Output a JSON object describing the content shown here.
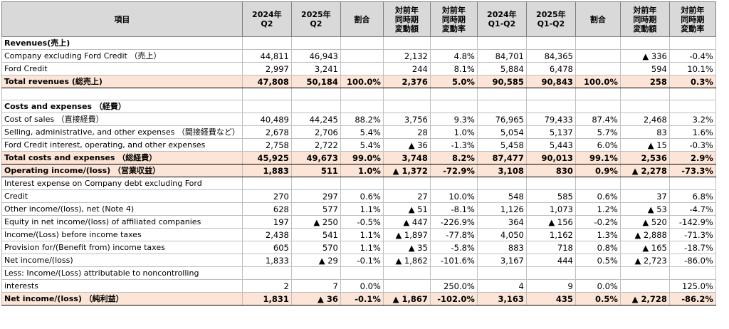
{
  "header": [
    "項目",
    "2024年\nQ2",
    "2025年\nQ2",
    "割合",
    "対前年\n同時期\n変動額",
    "対前年\n同時期\n変動率",
    "2024年\nQ1-Q2",
    "2025年\nQ1-Q2",
    "割合",
    "対前年\n同時期\n変動額",
    "対前年\n同時期\n変動率"
  ],
  "rows": [
    {
      "type": "section",
      "cells": [
        "Revenues(売上)",
        "",
        "",
        "",
        "",
        "",
        "",
        "",
        "",
        "",
        ""
      ]
    },
    {
      "type": "normal",
      "cells": [
        "Company excluding Ford Credit （売上）",
        "44,811",
        "46,943",
        "",
        "2,132",
        "4.8%",
        "84,701",
        "84,365",
        "",
        "▲ 336",
        "-0.4%"
      ]
    },
    {
      "type": "normal",
      "cells": [
        "Ford Credit",
        "2,997",
        "3,241",
        "",
        "244",
        "8.1%",
        "5,884",
        "6,478",
        "",
        "594",
        "10.1%"
      ]
    },
    {
      "type": "total",
      "cells": [
        "Total revenues (総売上)",
        "47,808",
        "50,184",
        "100.0%",
        "2,376",
        "5.0%",
        "90,585",
        "90,843",
        "100.0%",
        "258",
        "0.3%"
      ]
    },
    {
      "type": "blank",
      "cells": [
        "",
        "",
        "",
        "",
        "",
        "",
        "",
        "",
        "",
        "",
        ""
      ]
    },
    {
      "type": "section",
      "cells": [
        "Costs and expenses （経費）",
        "",
        "",
        "",
        "",
        "",
        "",
        "",
        "",
        "",
        ""
      ]
    },
    {
      "type": "normal",
      "cells": [
        "Cost of sales （直接経費）",
        "40,489",
        "44,245",
        "88.2%",
        "3,756",
        "9.3%",
        "76,965",
        "79,433",
        "87.4%",
        "2,468",
        "3.2%"
      ]
    },
    {
      "type": "normal",
      "cells": [
        "Selling, administrative, and other expenses （間接経費など）",
        "2,678",
        "2,706",
        "5.4%",
        "28",
        "1.0%",
        "5,054",
        "5,137",
        "5.7%",
        "83",
        "1.6%"
      ]
    },
    {
      "type": "normal",
      "cells": [
        "Ford Credit interest, operating, and other expenses",
        "2,758",
        "2,722",
        "5.4%",
        "▲ 36",
        "-1.3%",
        "5,458",
        "5,443",
        "6.0%",
        "▲ 15",
        "-0.3%"
      ]
    },
    {
      "type": "total",
      "cells": [
        "Total costs and expenses （総経費）",
        "45,925",
        "49,673",
        "99.0%",
        "3,748",
        "8.2%",
        "87,477",
        "90,013",
        "99.1%",
        "2,536",
        "2.9%"
      ]
    },
    {
      "type": "total",
      "cells": [
        "Operating income/(loss) （営業収益）",
        "1,883",
        "511",
        "1.0%",
        "▲ 1,372",
        "-72.9%",
        "3,108",
        "830",
        "0.9%",
        "▲ 2,278",
        "-73.3%"
      ]
    },
    {
      "type": "normal",
      "cells": [
        "Interest expense on Company debt excluding Ford",
        "",
        "",
        "",
        "",
        "",
        "",
        "",
        "",
        "",
        ""
      ]
    },
    {
      "type": "normal",
      "cells": [
        "Credit",
        "270",
        "297",
        "0.6%",
        "27",
        "10.0%",
        "548",
        "585",
        "0.6%",
        "37",
        "6.8%"
      ]
    },
    {
      "type": "normal",
      "cells": [
        "Other income/(loss), net (Note 4)",
        "628",
        "577",
        "1.1%",
        "▲ 51",
        "-8.1%",
        "1,126",
        "1,073",
        "1.2%",
        "▲ 53",
        "-4.7%"
      ]
    },
    {
      "type": "normal",
      "cells": [
        "Equity in net income/(loss) of affiliated companies",
        "197",
        "▲ 250",
        "-0.5%",
        "▲ 447",
        "-226.9%",
        "364",
        "▲ 156",
        "-0.2%",
        "▲ 520",
        "-142.9%"
      ]
    },
    {
      "type": "normal",
      "cells": [
        "Income/(Loss) before income taxes",
        "2,438",
        "541",
        "1.1%",
        "▲ 1,897",
        "-77.8%",
        "4,050",
        "1,162",
        "1.3%",
        "▲ 2,888",
        "-71.3%"
      ]
    },
    {
      "type": "normal",
      "cells": [
        "Provision for/(Benefit from) income taxes",
        "605",
        "570",
        "1.1%",
        "▲ 35",
        "-5.8%",
        "883",
        "718",
        "0.8%",
        "▲ 165",
        "-18.7%"
      ]
    },
    {
      "type": "normal",
      "cells": [
        "Net income/(loss)",
        "1,833",
        "▲ 29",
        "-0.1%",
        "▲ 1,862",
        "-101.6%",
        "3,167",
        "444",
        "0.5%",
        "▲ 2,723",
        "-86.0%"
      ]
    },
    {
      "type": "normal",
      "cells": [
        "Less: Income/(Loss) attributable to noncontrolling",
        "",
        "",
        "",
        "",
        "",
        "",
        "",
        "",
        "",
        ""
      ]
    },
    {
      "type": "normal",
      "cells": [
        "interests",
        "2",
        "7",
        "0.0%",
        "",
        "250.0%",
        "4",
        "9",
        "0.0%",
        "",
        "125.0%"
      ]
    },
    {
      "type": "total",
      "cells": [
        "Net income/(loss) （純利益）",
        "1,831",
        "▲ 36",
        "-0.1%",
        "▲ 1,867",
        "-102.0%",
        "3,163",
        "435",
        "0.5%",
        "▲ 2,728",
        "-86.2%"
      ]
    }
  ]
}
